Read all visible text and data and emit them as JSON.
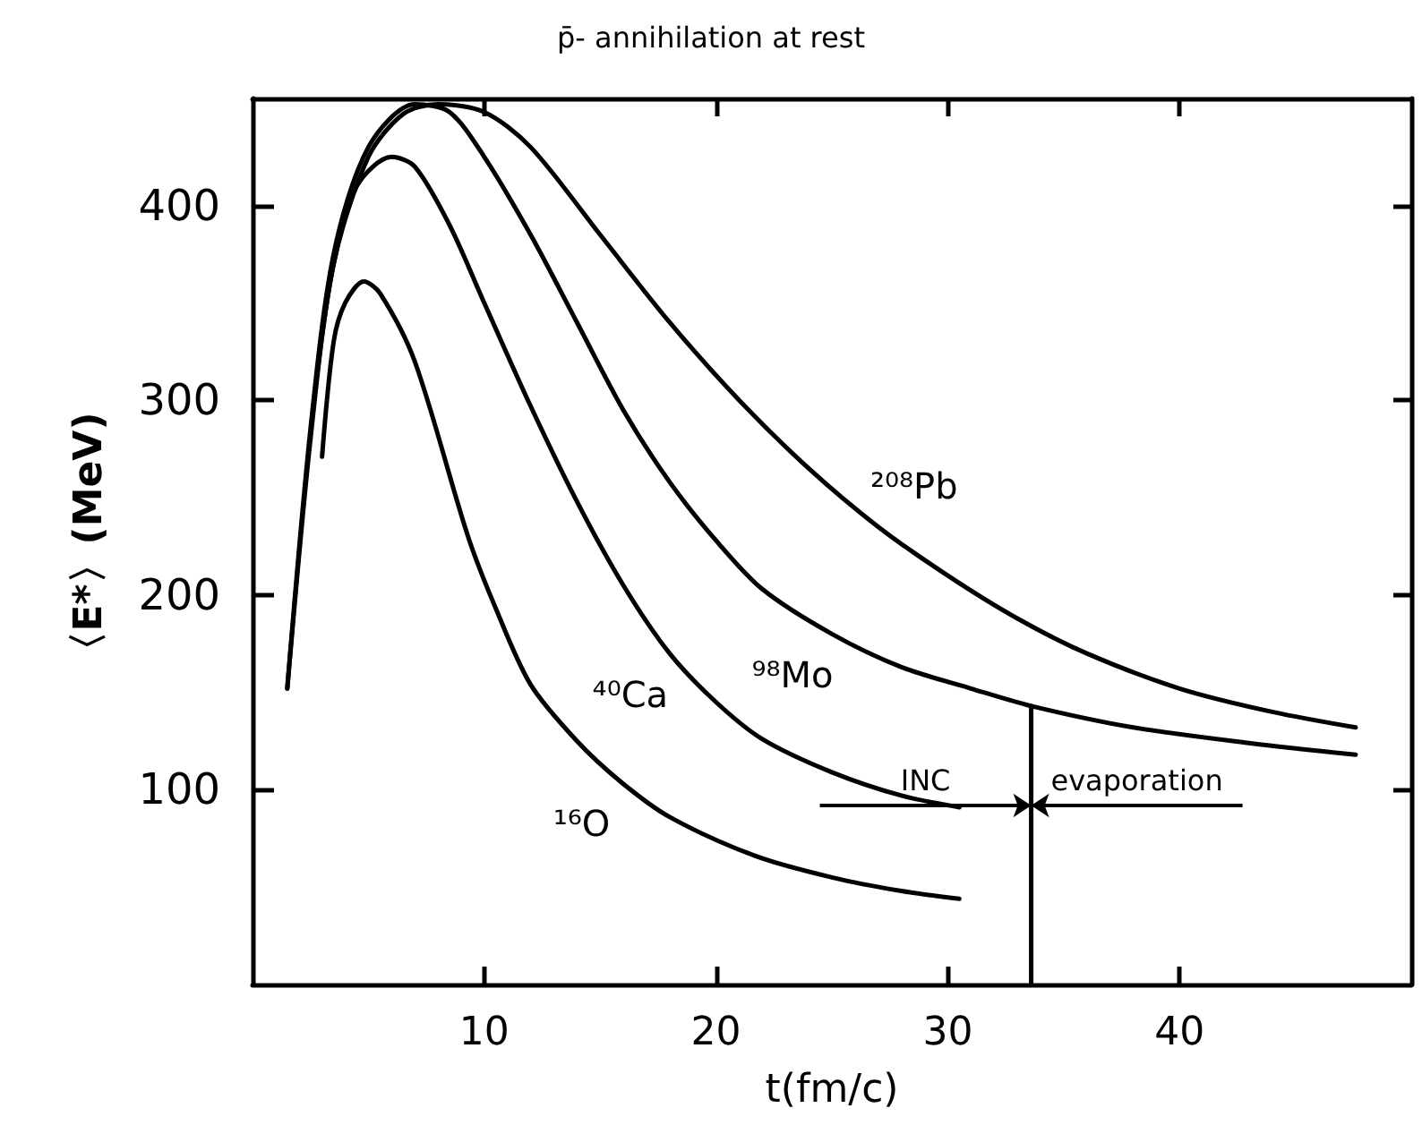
{
  "chart_data": {
    "type": "line",
    "title": "p̄- annihilation at rest",
    "xlabel": "t(fm/c)",
    "ylabel": "〈E*〉(MeV)",
    "xlim": [
      0,
      50
    ],
    "xticks": [
      10,
      20,
      30,
      40
    ],
    "ylim": [
      0,
      455
    ],
    "yticks": [
      100,
      200,
      300,
      400
    ],
    "grid": false,
    "legend": false,
    "marker": "none",
    "line_style": "solid",
    "series": [
      {
        "name": "²⁰⁸Pb",
        "color": "#000000",
        "x": [
          1.5,
          2.5,
          3.5,
          5,
          6.5,
          8,
          10,
          12,
          15,
          18,
          21,
          24,
          27,
          30,
          33,
          36,
          40,
          44,
          47.6
        ],
        "values": [
          152,
          280,
          370,
          425,
          447,
          452,
          448,
          430,
          385,
          340,
          300,
          265,
          235,
          210,
          188,
          170,
          152,
          140,
          132
        ]
      },
      {
        "name": "⁹⁸Mo",
        "color": "#000000",
        "x": [
          1.5,
          2.5,
          3.5,
          5,
          7,
          8.5,
          10,
          12,
          14,
          16,
          18,
          20,
          22,
          25,
          28,
          31,
          33.6,
          38,
          43,
          47.6
        ],
        "values": [
          152,
          285,
          375,
          430,
          452,
          448,
          425,
          385,
          340,
          295,
          258,
          228,
          203,
          180,
          163,
          152,
          143,
          132,
          124,
          118
        ]
      },
      {
        "name": "⁴⁰Ca",
        "color": "#000000",
        "x": [
          2.8,
          3.5,
          4.5,
          6,
          7,
          8.5,
          10,
          12,
          14,
          16,
          18,
          20,
          22,
          25,
          28,
          30.5
        ],
        "values": [
          315,
          370,
          410,
          425,
          420,
          390,
          350,
          297,
          248,
          205,
          170,
          145,
          126,
          109,
          97,
          91
        ]
      },
      {
        "name": "¹⁶O",
        "color": "#000000",
        "x": [
          3,
          3.5,
          4,
          4.8,
          5.5,
          7,
          9.3,
          10.5,
          12,
          14,
          15.9,
          18,
          21.7,
          25,
          28,
          30.5
        ],
        "values": [
          271,
          330,
          350,
          361,
          355,
          320,
          230,
          193,
          154,
          125,
          104,
          86,
          66,
          55,
          48,
          44
        ]
      },
      {
        "color": "#000000",
        "x": [
          33.6,
          33.6
        ],
        "values": [
          0,
          143
        ]
      }
    ],
    "annotations": [
      "INC",
      "evaporation"
    ]
  }
}
